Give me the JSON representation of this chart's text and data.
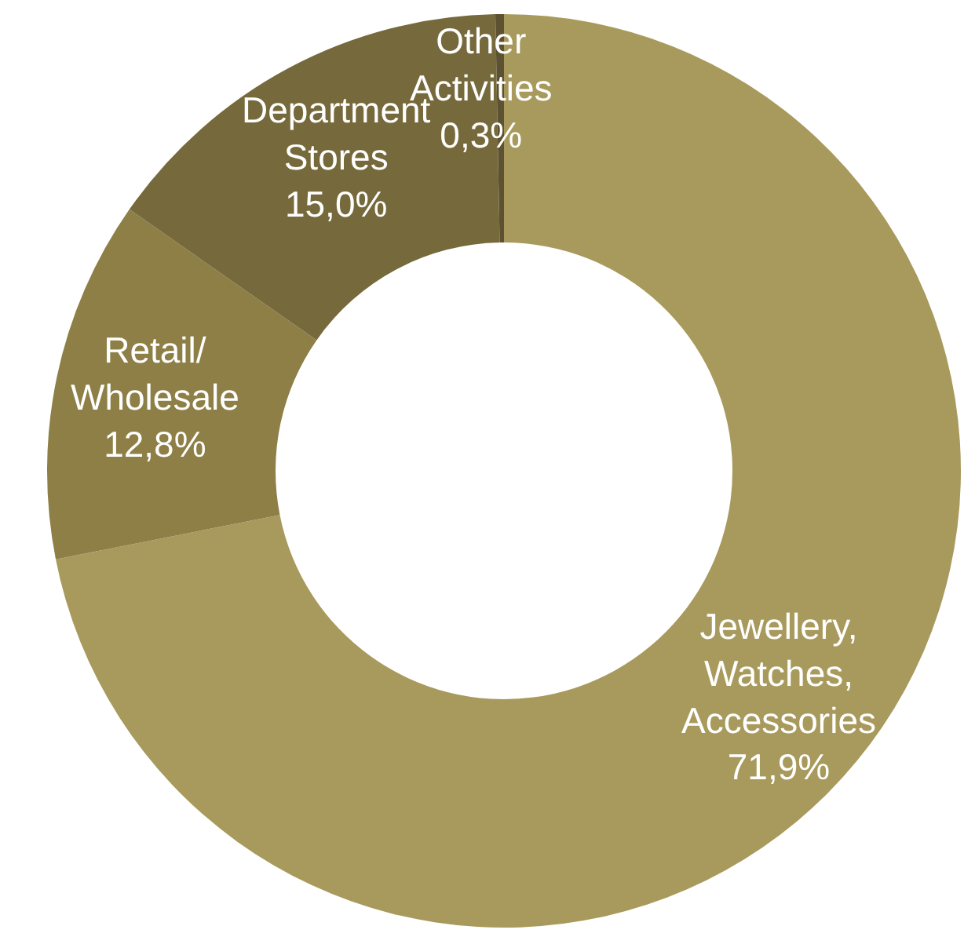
{
  "chart_data": {
    "type": "donut",
    "categories": [
      "Jewellery,\nWatches,\nAccessories",
      "Retail/\nWholesale",
      "Department\nStores",
      "Other\nActivities"
    ],
    "values": [
      71.9,
      12.8,
      15.0,
      0.3
    ],
    "value_labels": [
      "71,9%",
      "12,8%",
      "15,0%",
      "0,3%"
    ],
    "colors": [
      "#a89a5c",
      "#8e7f47",
      "#766a3c",
      "#5c5130"
    ],
    "legend": false
  }
}
